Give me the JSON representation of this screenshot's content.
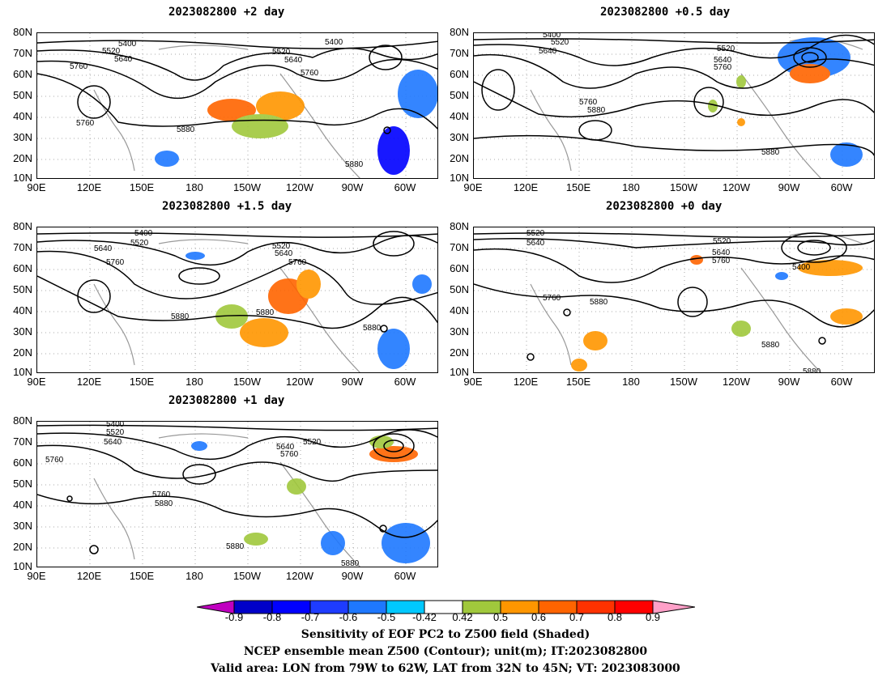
{
  "panels": [
    {
      "title": "2023082800  +2 day"
    },
    {
      "title": "2023082800  +0.5 day"
    },
    {
      "title": "2023082800  +1.5 day"
    },
    {
      "title": "2023082800  +0 day"
    },
    {
      "title": "2023082800  +1 day"
    }
  ],
  "axes": {
    "lat_labels": [
      "80N",
      "70N",
      "60N",
      "50N",
      "40N",
      "30N",
      "20N",
      "10N"
    ],
    "lon_labels": [
      "90E",
      "120E",
      "150E",
      "180",
      "150W",
      "120W",
      "90W",
      "60W"
    ]
  },
  "contour_labels": [
    "5400",
    "5520",
    "5640",
    "5760",
    "5880"
  ],
  "colorbar": {
    "ticks": [
      "-0.9",
      "-0.8",
      "-0.7",
      "-0.6",
      "-0.5",
      "-0.42",
      "0.42",
      "0.5",
      "0.6",
      "0.7",
      "0.8",
      "0.9"
    ],
    "colors": [
      "#c000c0",
      "#0000c8",
      "#0000ff",
      "#1e3cff",
      "#1e78ff",
      "#00c8ff",
      "#ffffff",
      "#a0c83c",
      "#ff9600",
      "#ff6400",
      "#ff3200",
      "#ff0000",
      "#ffa0c8"
    ]
  },
  "footer": {
    "line1": "Sensitivity of EOF PC2 to Z500 field (Shaded)",
    "line2": "NCEP ensemble mean Z500 (Contour); unit(m); IT:2023082800",
    "line3": "Valid area: LON from 79W to 62W, LAT from 32N to 45N; VT: 2023083000"
  }
}
